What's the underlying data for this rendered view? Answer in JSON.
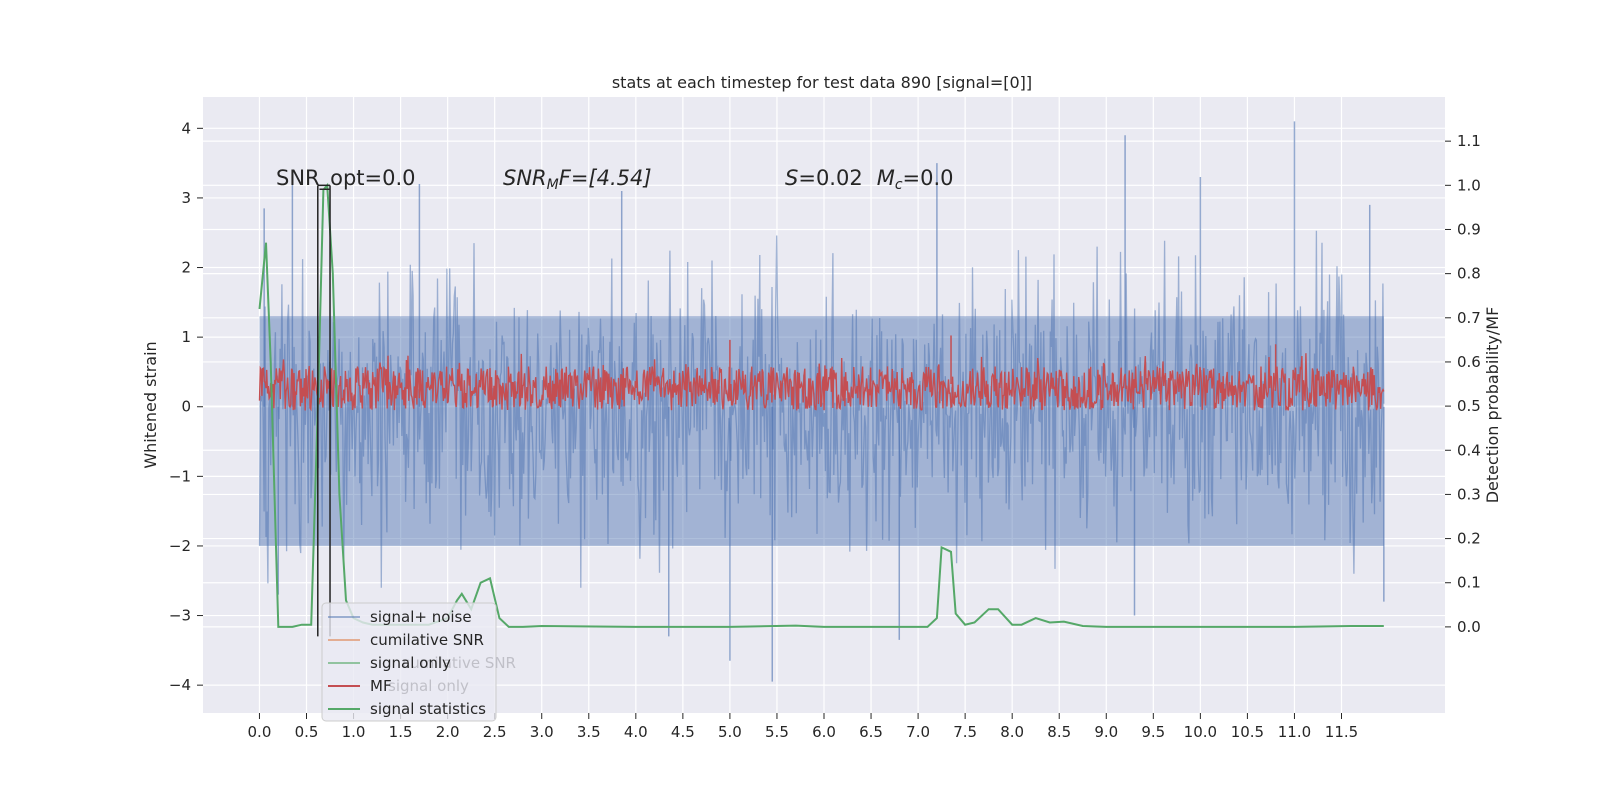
{
  "chart_data": {
    "type": "line",
    "title": "stats at each timestep for test data 890 [signal=[0]]",
    "xlabel": "",
    "ylabel": "Whitened strain",
    "ylabel_right": "Detection probability/MF",
    "xlim": [
      -0.6,
      12.6
    ],
    "ylim": [
      -4.4,
      4.45
    ],
    "ylim_right": [
      -0.195,
      1.2
    ],
    "x_ticks": [
      "0.0",
      "0.5",
      "1.0",
      "1.5",
      "2.0",
      "2.5",
      "3.0",
      "3.5",
      "4.0",
      "4.5",
      "5.0",
      "5.5",
      "6.0",
      "6.5",
      "7.0",
      "7.5",
      "8.0",
      "8.5",
      "9.0",
      "9.5",
      "10.0",
      "10.5",
      "11.0",
      "11.5"
    ],
    "y_ticks": [
      "4",
      "3",
      "2",
      "1",
      "0",
      "−1",
      "−2",
      "−3",
      "−4"
    ],
    "y_ticks_right": [
      "1.1",
      "1.0",
      "0.9",
      "0.8",
      "0.7",
      "0.6",
      "0.5",
      "0.4",
      "0.3",
      "0.2",
      "0.1",
      "0.0"
    ],
    "annotations": {
      "snr_opt": "SNR_opt=0.0",
      "snr_mf_label": "SNR",
      "snr_mf_sub": "M",
      "snr_mf_rest": "F=[4.54]",
      "s_label": "S",
      "s_value": "=0.02",
      "mc_label": "M",
      "mc_sub": "c",
      "mc_value": "=0.0"
    },
    "legend": [
      "signal+ noise",
      "cumilative SNR",
      "signal only",
      "MF",
      "signal statistics"
    ],
    "legend_overlap_text": [
      "cumilative SNR",
      "signal only"
    ],
    "colors": {
      "signal_noise": "#4c72b0",
      "cumulative_snr": "#dd8452",
      "signal_only": "#55a868",
      "mf": "#c44e52",
      "signal_statistics": "#55a868",
      "background": "#eaeaf2",
      "marker_line": "#222222"
    },
    "series": [
      {
        "name": "signal+ noise",
        "axis": "left",
        "description": "noise band, values mostly between -2.6 and 2.9 with spikes",
        "band": [
          -2.6,
          2.9
        ],
        "spikes": [
          {
            "x": 0.05,
            "y": 2.85
          },
          {
            "x": 0.2,
            "y": -2.7
          },
          {
            "x": 0.35,
            "y": 3.35
          },
          {
            "x": 1.7,
            "y": 3.2
          },
          {
            "x": 3.85,
            "y": 3.1
          },
          {
            "x": 4.35,
            "y": -3.3
          },
          {
            "x": 5.0,
            "y": -3.65
          },
          {
            "x": 5.45,
            "y": -3.95
          },
          {
            "x": 6.8,
            "y": -3.35
          },
          {
            "x": 7.2,
            "y": 3.5
          },
          {
            "x": 9.2,
            "y": 3.9
          },
          {
            "x": 9.3,
            "y": -3.0
          },
          {
            "x": 10.0,
            "y": 3.3
          },
          {
            "x": 11.0,
            "y": 4.1
          },
          {
            "x": 11.8,
            "y": 2.9
          },
          {
            "x": 11.95,
            "y": -2.8
          }
        ]
      },
      {
        "name": "MF",
        "axis": "right",
        "description": "matched filter output, mostly 0.48-0.60",
        "band": [
          0.49,
          0.59
        ],
        "spikes": [
          {
            "x": 5.0,
            "y": 0.65
          },
          {
            "x": 7.35,
            "y": 0.66
          },
          {
            "x": 10.8,
            "y": 0.64
          }
        ]
      },
      {
        "name": "signal statistics",
        "axis": "right",
        "x": [
          0.0,
          0.07,
          0.12,
          0.2,
          0.25,
          0.35,
          0.45,
          0.55,
          0.62,
          0.68,
          0.72,
          0.78,
          0.85,
          0.92,
          1.0,
          1.1,
          1.2,
          1.5,
          1.8,
          2.0,
          2.1,
          2.15,
          2.25,
          2.35,
          2.45,
          2.55,
          2.65,
          2.8,
          3.0,
          4.0,
          5.0,
          5.7,
          6.0,
          7.0,
          7.1,
          7.2,
          7.25,
          7.35,
          7.4,
          7.5,
          7.6,
          7.75,
          7.85,
          8.0,
          8.1,
          8.25,
          8.4,
          8.55,
          8.75,
          9.0,
          10.0,
          11.0,
          11.6,
          11.95
        ],
        "y": [
          0.72,
          0.87,
          0.6,
          0.0,
          0.0,
          0.0,
          0.005,
          0.005,
          0.5,
          0.99,
          1.0,
          0.8,
          0.3,
          0.06,
          0.02,
          0.01,
          0.005,
          0.005,
          0.005,
          0.02,
          0.06,
          0.075,
          0.04,
          0.1,
          0.11,
          0.02,
          0.0,
          0.0,
          0.002,
          0.0,
          0.0,
          0.003,
          0.0,
          0.0,
          0.0,
          0.02,
          0.18,
          0.17,
          0.03,
          0.005,
          0.01,
          0.04,
          0.04,
          0.005,
          0.005,
          0.02,
          0.01,
          0.012,
          0.002,
          0.0,
          0.0,
          0.0,
          0.002,
          0.002
        ]
      }
    ],
    "vertical_markers": [
      0.62,
      0.75
    ]
  }
}
